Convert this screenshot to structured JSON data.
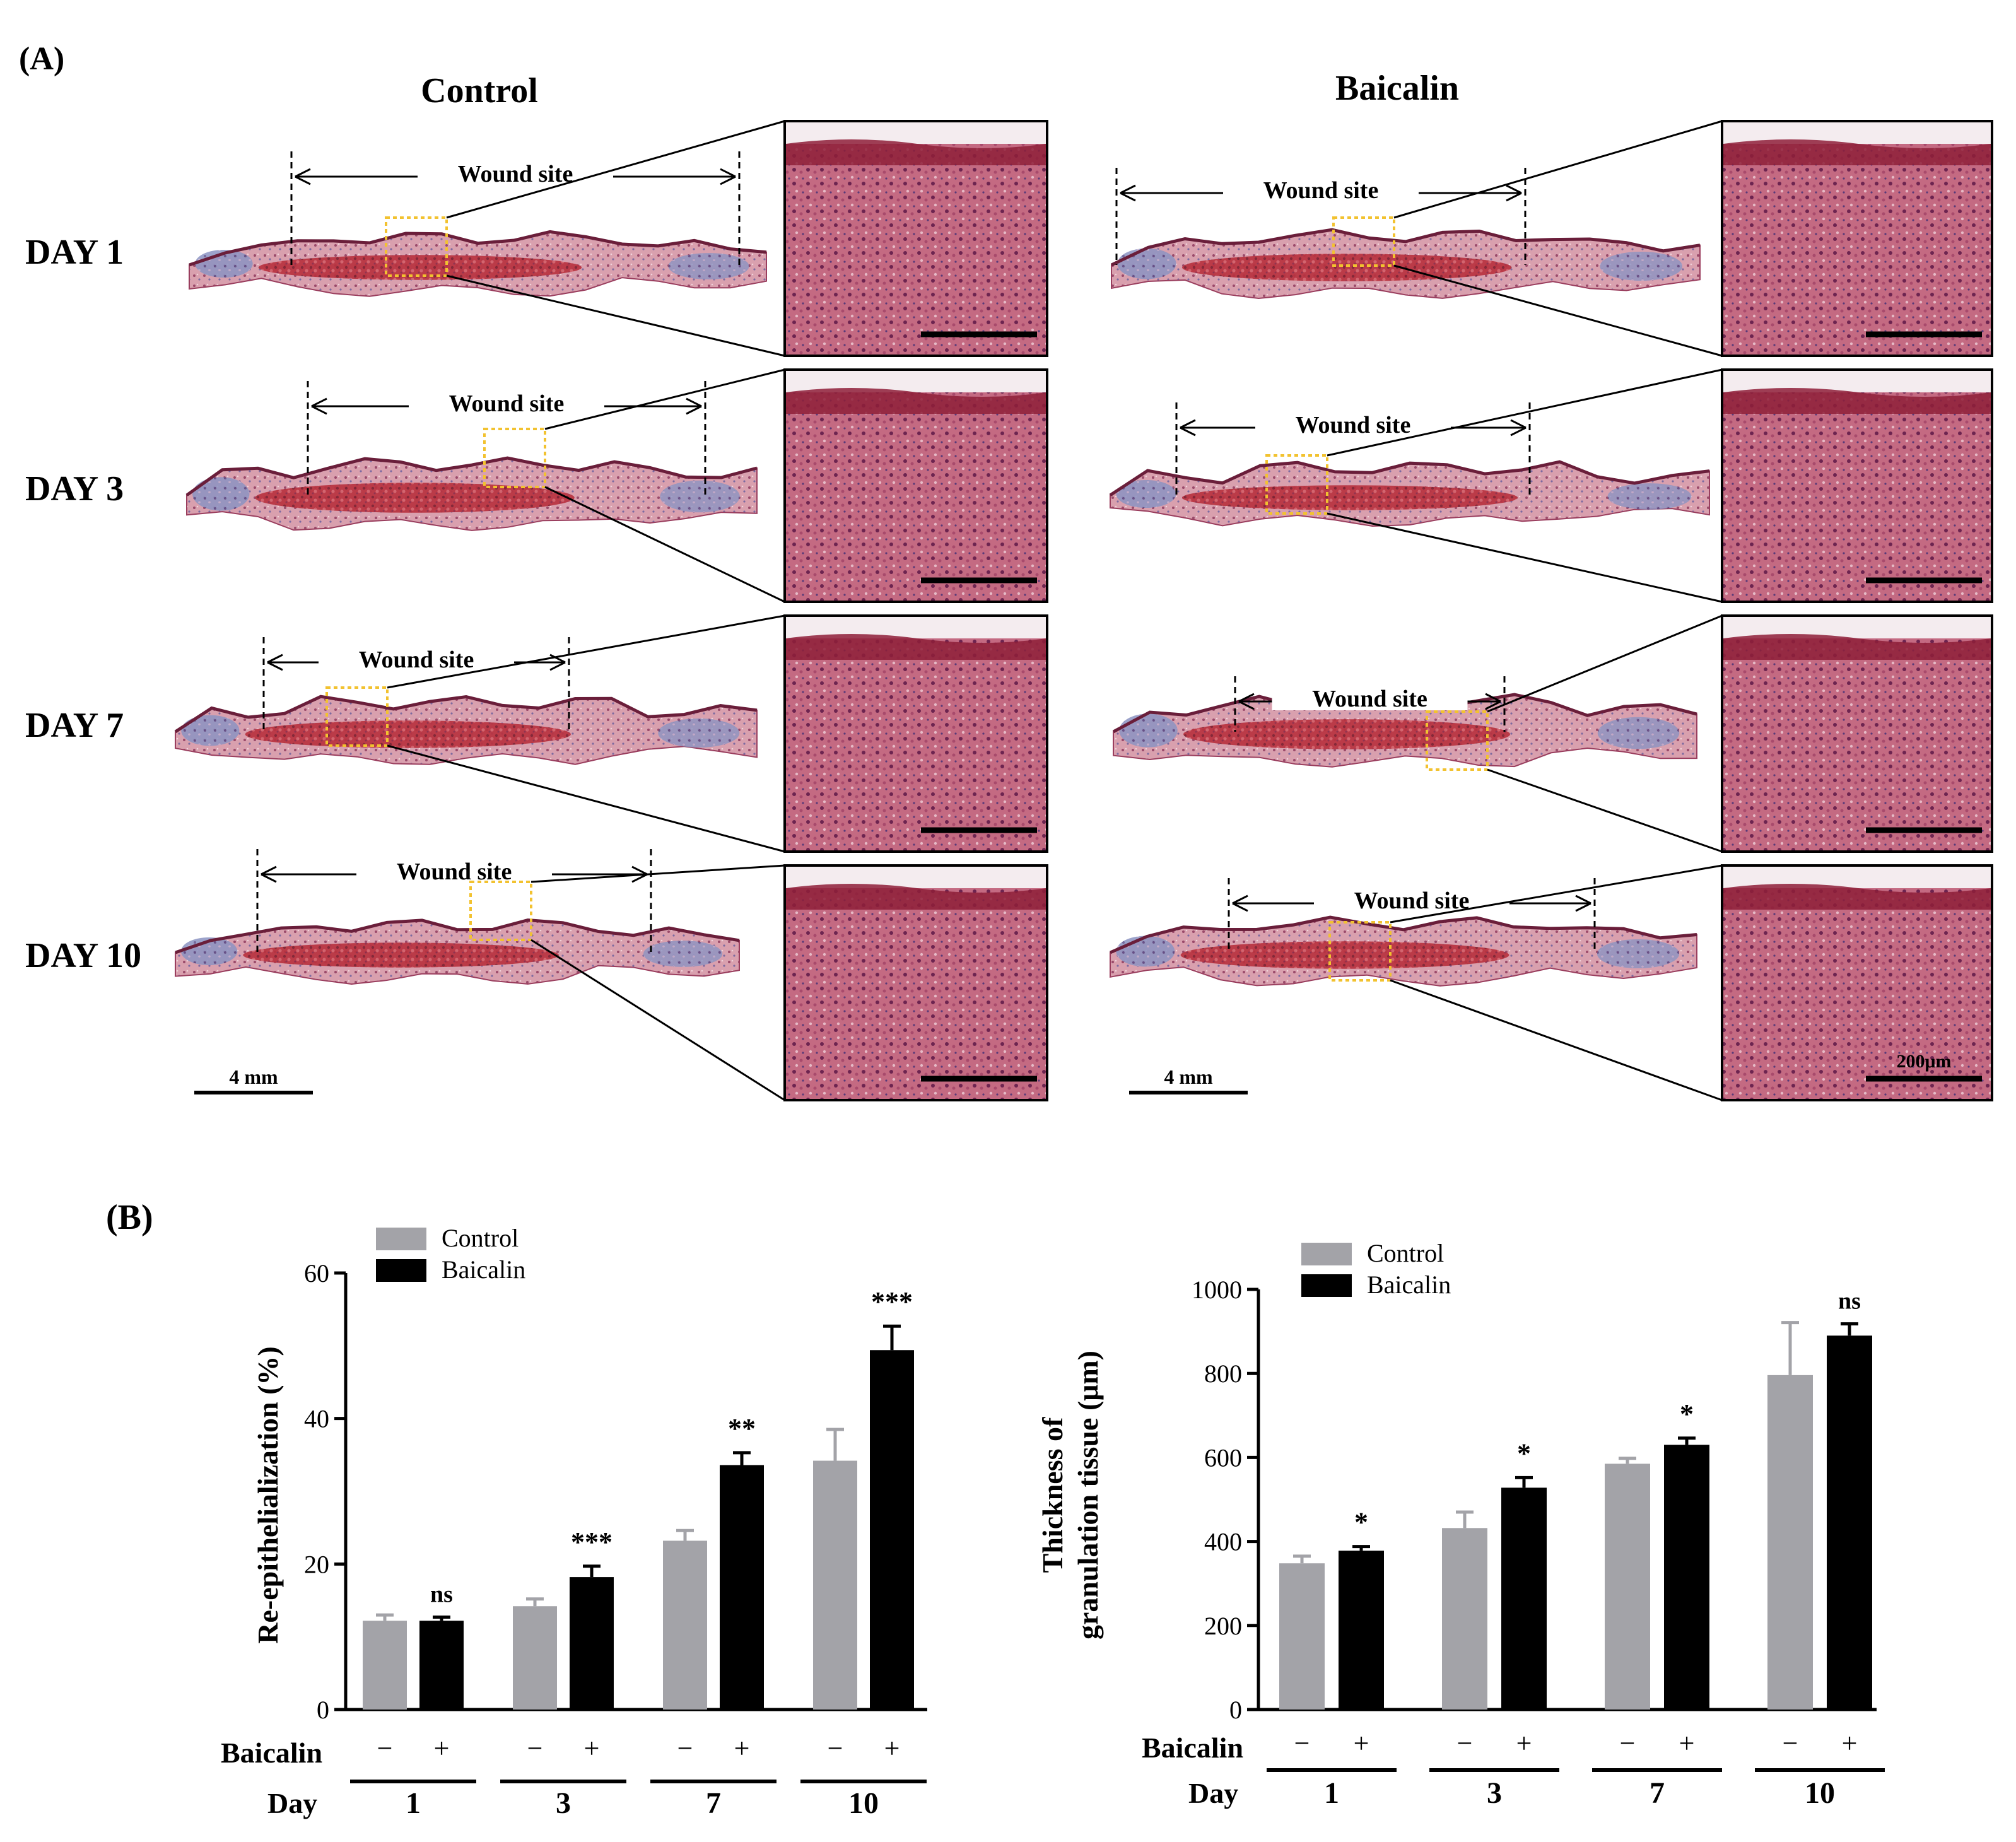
{
  "panel_a": {
    "label": "(A)",
    "columns": {
      "control": "Control",
      "baicalin": "Baicalin"
    },
    "days": [
      "DAY 1",
      "DAY 3",
      "DAY 7",
      "DAY 10"
    ],
    "wound_label": "Wound site",
    "scale_main": "4 mm",
    "scale_inset": "200μm",
    "colors": {
      "tissue_red": "#b8323f",
      "tissue_pink": "#d98a9a",
      "collagen_blue": "#6f86b8",
      "marker_yellow": "#f2c230"
    }
  },
  "panel_b": {
    "label": "(B)"
  },
  "chart_data": [
    {
      "type": "bar",
      "title": "",
      "ylabel": "Re-epithelialization (%)",
      "ylim": [
        0,
        60
      ],
      "yticks": [
        "0",
        "20",
        "40",
        "60"
      ],
      "categories": [
        "1",
        "3",
        "7",
        "10"
      ],
      "xrow_label": "Day",
      "treatment_row_label": "Baicalin",
      "treatment_signs": [
        "−",
        "+"
      ],
      "legend": [
        "Control",
        "Baicalin"
      ],
      "colors": {
        "Control": "#a3a3a8",
        "Baicalin": "#000000"
      },
      "series": [
        {
          "name": "Control",
          "values": [
            12.2,
            14.2,
            23.2,
            34.2
          ],
          "errors": [
            0.8,
            1.0,
            1.4,
            4.3
          ]
        },
        {
          "name": "Baicalin",
          "values": [
            12.2,
            18.2,
            33.6,
            49.4
          ],
          "errors": [
            0.5,
            1.5,
            1.7,
            3.3
          ]
        }
      ],
      "significance": [
        "ns",
        "***",
        "**",
        "***"
      ]
    },
    {
      "type": "bar",
      "title": "",
      "ylabel": "Thickness of granulation tissue (μm)",
      "ylabel_lines": [
        "Thickness of",
        "granulation tissue (μm)"
      ],
      "ylim": [
        0,
        1000
      ],
      "yticks": [
        "0",
        "200",
        "400",
        "600",
        "800",
        "1000"
      ],
      "categories": [
        "1",
        "3",
        "7",
        "10"
      ],
      "xrow_label": "Day",
      "treatment_row_label": "Baicalin",
      "treatment_signs": [
        "−",
        "+"
      ],
      "legend": [
        "Control",
        "Baicalin"
      ],
      "colors": {
        "Control": "#a3a3a8",
        "Baicalin": "#000000"
      },
      "series": [
        {
          "name": "Control",
          "values": [
            348,
            432,
            585,
            796
          ],
          "errors": [
            17,
            38,
            13,
            125
          ]
        },
        {
          "name": "Baicalin",
          "values": [
            378,
            528,
            630,
            890
          ],
          "errors": [
            10,
            24,
            16,
            28
          ]
        }
      ],
      "significance": [
        "*",
        "*",
        "*",
        "ns"
      ]
    }
  ]
}
